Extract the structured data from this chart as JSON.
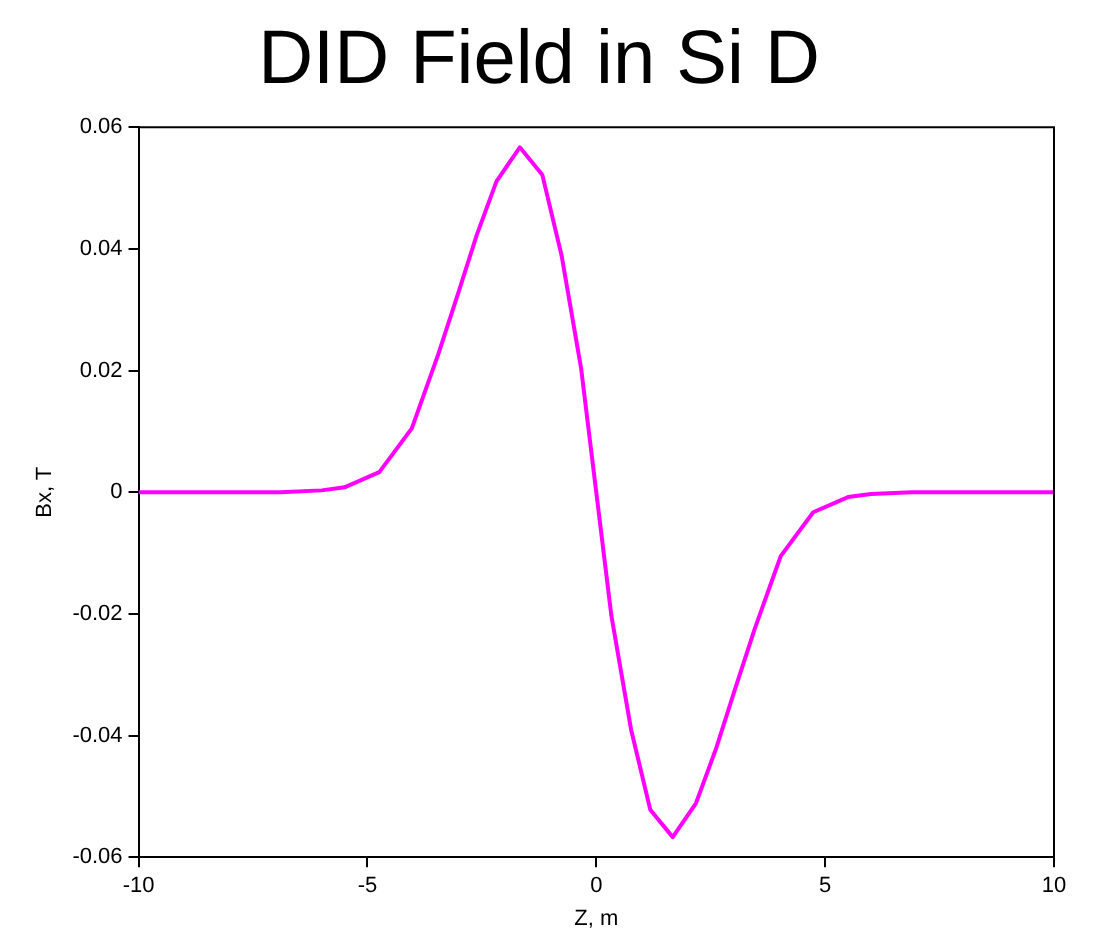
{
  "chart_data": {
    "type": "line",
    "title": "DID Field in Si D",
    "xlabel": "Z, m",
    "ylabel": "Bx, T",
    "x": [
      -10,
      -8,
      -6.9,
      -6,
      -5.5,
      -4.74,
      -4.03,
      -3.46,
      -3.03,
      -2.61,
      -2.18,
      -1.67,
      -1.18,
      -0.76,
      -0.33,
      0,
      0.33,
      0.76,
      1.18,
      1.67,
      2.18,
      2.61,
      3.03,
      3.46,
      4.03,
      4.74,
      5.5,
      6,
      6.9,
      8,
      10
    ],
    "series": [
      {
        "color": "#ff00ff",
        "values": [
          0,
          0,
          0,
          0.0003,
          0.0008,
          0.0033,
          0.0105,
          0.0225,
          0.0324,
          0.0423,
          0.0511,
          0.0567,
          0.0522,
          0.039,
          0.0203,
          0,
          -0.0203,
          -0.039,
          -0.0522,
          -0.0567,
          -0.0511,
          -0.0423,
          -0.0324,
          -0.0225,
          -0.0105,
          -0.0033,
          -0.0008,
          -0.0003,
          0,
          0,
          0
        ]
      }
    ],
    "xlim": [
      -10,
      10
    ],
    "xticks": [
      -10,
      -5,
      0,
      5,
      10
    ],
    "ylim": [
      -0.06,
      0.06
    ],
    "yticks": [
      -0.06,
      -0.04,
      -0.02,
      0,
      0.02,
      0.04,
      0.06
    ],
    "grid": false,
    "legend": false,
    "marker": "none",
    "line_style": "solid"
  }
}
